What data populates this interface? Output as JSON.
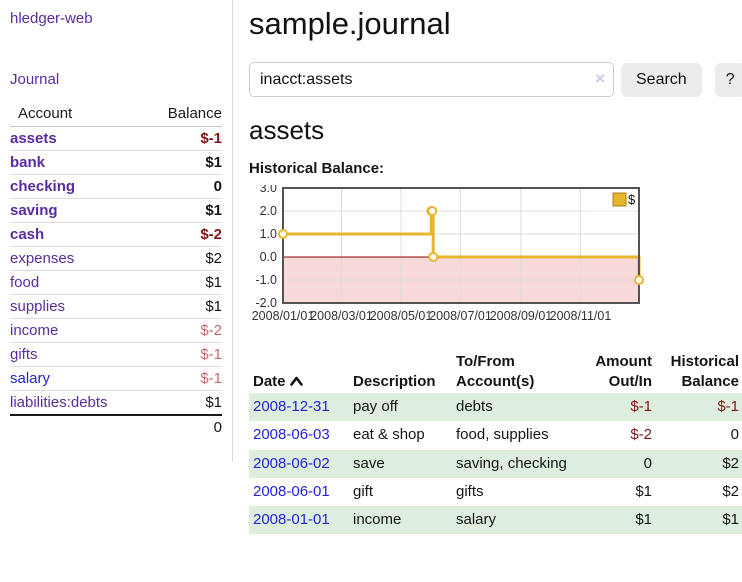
{
  "sidebar": {
    "brand": "hledger-web",
    "journal_link": "Journal",
    "accounts_table": {
      "headers": {
        "account": "Account",
        "balance": "Balance"
      },
      "rows": [
        {
          "name": "assets",
          "balance": "$-1",
          "depth": 1,
          "bold": true,
          "balance_class": "neg-dark"
        },
        {
          "name": "bank",
          "balance": "$1",
          "depth": 2,
          "bold": true,
          "balance_class": "pos"
        },
        {
          "name": "checking",
          "balance": "0",
          "depth": 3,
          "bold": true,
          "balance_class": "pos"
        },
        {
          "name": "saving",
          "balance": "$1",
          "depth": 3,
          "bold": true,
          "balance_class": "pos"
        },
        {
          "name": "cash",
          "balance": "$-2",
          "depth": 2,
          "bold": true,
          "balance_class": "neg-dark"
        },
        {
          "name": "expenses",
          "balance": "$2",
          "depth": 1,
          "bold": false,
          "balance_class": "pos"
        },
        {
          "name": "food",
          "balance": "$1",
          "depth": 2,
          "bold": false,
          "balance_class": "pos"
        },
        {
          "name": "supplies",
          "balance": "$1",
          "depth": 2,
          "bold": false,
          "balance_class": "pos"
        },
        {
          "name": "income",
          "balance": "$-2",
          "depth": 1,
          "bold": false,
          "balance_class": "neg-light"
        },
        {
          "name": "gifts",
          "balance": "$-1",
          "depth": 2,
          "bold": false,
          "balance_class": "neg-light"
        },
        {
          "name": "salary",
          "balance": "$-1",
          "depth": 2,
          "bold": false,
          "balance_class": "neg-light",
          "link_color": "blue"
        },
        {
          "name": "liabilities:debts",
          "balance": "$1",
          "depth": 1,
          "bold": false,
          "balance_class": "pos"
        }
      ],
      "total": "0"
    }
  },
  "main": {
    "title": "sample.journal",
    "search": {
      "value": "inacct:assets",
      "clear_icon": "×",
      "button": "Search",
      "help_button": "?"
    },
    "account_heading": "assets",
    "chart_label": "Historical Balance:"
  },
  "icons": {
    "search_clear": "x-clear",
    "date_sort": "chevron-up",
    "legend_swatch": "filled-square"
  },
  "chart_data": {
    "type": "line",
    "title": "Historical Balance",
    "step": true,
    "x_range": [
      "2008-01-01",
      "2008-12-31"
    ],
    "ylim": [
      -2,
      3
    ],
    "yticks": [
      3.0,
      2.0,
      1.0,
      0.0,
      -1.0,
      -2.0
    ],
    "xticks": [
      "2008/01/01",
      "2008/03/01",
      "2008/05/01",
      "2008/07/01",
      "2008/09/01",
      "2008/11/01"
    ],
    "series": [
      {
        "name": "$",
        "color": "#e8b62c",
        "points": [
          [
            "2008-01-01",
            1
          ],
          [
            "2008-06-01",
            2
          ],
          [
            "2008-06-02",
            2
          ],
          [
            "2008-06-03",
            0
          ],
          [
            "2008-12-31",
            -1
          ]
        ]
      }
    ],
    "legend": {
      "label": "$",
      "position": "top-right"
    },
    "grid": true,
    "zero_line_color": "#8b0000",
    "negative_region_color": "#f8d9d9",
    "border_color": "#545454",
    "gridline_color": "#dcdcdc"
  },
  "register": {
    "headers": [
      "Date",
      "Description",
      "To/From Account(s)",
      "Amount Out/In",
      "Historical Balance"
    ],
    "sort": {
      "column": "Date",
      "direction": "ascending"
    },
    "rows": [
      {
        "date": "2008-12-31",
        "description": "pay off",
        "accounts": "debts",
        "amount": "$-1",
        "balance": "$-1"
      },
      {
        "date": "2008-06-03",
        "description": "eat & shop",
        "accounts": "food, supplies",
        "amount": "$-2",
        "balance": "0"
      },
      {
        "date": "2008-06-02",
        "description": "save",
        "accounts": "saving, checking",
        "amount": "0",
        "balance": "$2"
      },
      {
        "date": "2008-06-01",
        "description": "gift",
        "accounts": "gifts",
        "amount": "$1",
        "balance": "$2"
      },
      {
        "date": "2008-01-01",
        "description": "income",
        "accounts": "salary",
        "amount": "$1",
        "balance": "$1"
      }
    ]
  },
  "colors": {
    "link_purple": "#5a2ca0",
    "link_blue": "#2323dd",
    "negative_dark": "#801717",
    "negative_light": "#c5696f",
    "row_stripe_green": "#deeede",
    "series_gold": "#e8b62c",
    "zero_line": "#8b0000",
    "negative_region": "#f8d9d9"
  }
}
